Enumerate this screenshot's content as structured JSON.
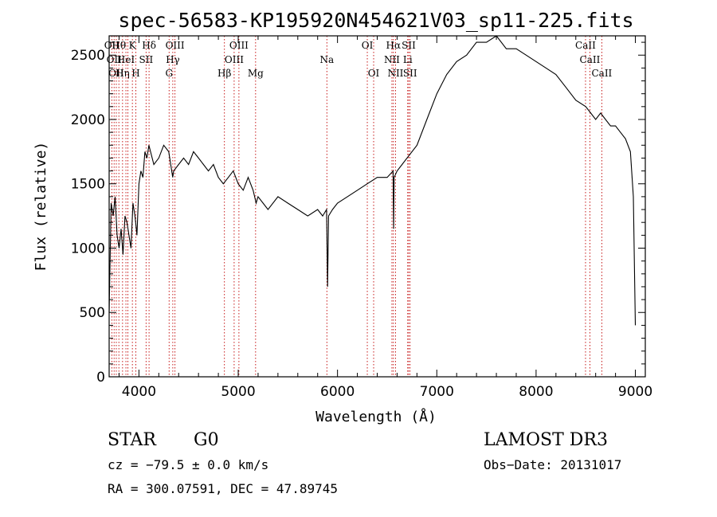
{
  "chart_data": {
    "type": "line",
    "title": "spec-56583-KP195920N454621V03_sp11-225.fits",
    "xlabel": "Wavelength (Å)",
    "ylabel": "Flux (relative)",
    "xlim": [
      3700,
      9100
    ],
    "ylim": [
      0,
      2650
    ],
    "xticks": [
      "4000",
      "5000",
      "6000",
      "7000",
      "8000",
      "9000"
    ],
    "yticks": [
      "0",
      "500",
      "1000",
      "1500",
      "2000",
      "2500"
    ],
    "grid": false,
    "x": [
      3700,
      3720,
      3740,
      3760,
      3780,
      3800,
      3820,
      3840,
      3860,
      3880,
      3900,
      3920,
      3940,
      3960,
      3980,
      4000,
      4020,
      4040,
      4060,
      4080,
      4100,
      4150,
      4200,
      4250,
      4300,
      4340,
      4350,
      4400,
      4450,
      4500,
      4550,
      4600,
      4650,
      4700,
      4750,
      4800,
      4850,
      4900,
      4950,
      5000,
      5050,
      5100,
      5150,
      5180,
      5200,
      5250,
      5300,
      5400,
      5500,
      5600,
      5700,
      5800,
      5850,
      5890,
      5900,
      5910,
      5950,
      6000,
      6100,
      6200,
      6300,
      6400,
      6500,
      6560,
      6565,
      6570,
      6600,
      6650,
      6700,
      6800,
      6900,
      7000,
      7100,
      7200,
      7300,
      7400,
      7500,
      7600,
      7700,
      7800,
      7900,
      8000,
      8100,
      8200,
      8300,
      8400,
      8500,
      8550,
      8600,
      8650,
      8700,
      8750,
      8800,
      8850,
      8900,
      8950,
      8980,
      9000
    ],
    "values": [
      500,
      1350,
      1250,
      1400,
      1100,
      1000,
      1150,
      950,
      1250,
      1200,
      1100,
      1000,
      1350,
      1250,
      1100,
      1500,
      1600,
      1550,
      1750,
      1700,
      1800,
      1650,
      1700,
      1800,
      1750,
      1550,
      1600,
      1650,
      1700,
      1650,
      1750,
      1700,
      1650,
      1600,
      1650,
      1550,
      1500,
      1550,
      1600,
      1500,
      1450,
      1550,
      1450,
      1350,
      1400,
      1350,
      1300,
      1400,
      1350,
      1300,
      1250,
      1300,
      1250,
      1300,
      700,
      1250,
      1300,
      1350,
      1400,
      1450,
      1500,
      1550,
      1550,
      1600,
      1150,
      1550,
      1600,
      1650,
      1700,
      1800,
      2000,
      2200,
      2350,
      2450,
      2500,
      2600,
      2600,
      2650,
      2550,
      2550,
      2500,
      2450,
      2400,
      2350,
      2250,
      2150,
      2100,
      2050,
      2000,
      2050,
      2000,
      1950,
      1950,
      1900,
      1850,
      1750,
      1400,
      400
    ],
    "lines": [
      {
        "w": 3727,
        "l1": "OII",
        "l2": "",
        "l3": ""
      },
      {
        "w": 3750,
        "l1": "",
        "l2": "OII",
        "l3": ""
      },
      {
        "w": 3772,
        "l1": "",
        "l2": "",
        "l3": "OII"
      },
      {
        "w": 3798,
        "l1": "Hθ",
        "l2": "",
        "l3": ""
      },
      {
        "w": 3835,
        "l1": "",
        "l2": "",
        "l3": "Hη"
      },
      {
        "w": 3869,
        "l1": "",
        "l2": "HeI",
        "l3": ""
      },
      {
        "w": 3889,
        "l1": "",
        "l2": "",
        "l3": ""
      },
      {
        "w": 3934,
        "l1": "K",
        "l2": "",
        "l3": ""
      },
      {
        "w": 3969,
        "l1": "",
        "l2": "",
        "l3": "H"
      },
      {
        "w": 4072,
        "l1": "",
        "l2": "SII",
        "l3": ""
      },
      {
        "w": 4102,
        "l1": "Hδ",
        "l2": "",
        "l3": ""
      },
      {
        "w": 4304,
        "l1": "",
        "l2": "",
        "l3": "G"
      },
      {
        "w": 4341,
        "l1": "",
        "l2": "Hγ",
        "l3": ""
      },
      {
        "w": 4363,
        "l1": "OIII",
        "l2": "",
        "l3": ""
      },
      {
        "w": 4861,
        "l1": "",
        "l2": "",
        "l3": "Hβ"
      },
      {
        "w": 4959,
        "l1": "",
        "l2": "OIII",
        "l3": ""
      },
      {
        "w": 5007,
        "l1": "OIII",
        "l2": "",
        "l3": ""
      },
      {
        "w": 5175,
        "l1": "",
        "l2": "",
        "l3": "Mg"
      },
      {
        "w": 5893,
        "l1": "",
        "l2": "Na",
        "l3": ""
      },
      {
        "w": 6300,
        "l1": "OI",
        "l2": "",
        "l3": ""
      },
      {
        "w": 6364,
        "l1": "",
        "l2": "",
        "l3": "OI"
      },
      {
        "w": 6548,
        "l1": "",
        "l2": "NII",
        "l3": ""
      },
      {
        "w": 6563,
        "l1": "Hα",
        "l2": "",
        "l3": ""
      },
      {
        "w": 6584,
        "l1": "",
        "l2": "",
        "l3": "NII"
      },
      {
        "w": 6707,
        "l1": "",
        "l2": "Li",
        "l3": ""
      },
      {
        "w": 6717,
        "l1": "SII",
        "l2": "",
        "l3": ""
      },
      {
        "w": 6731,
        "l1": "",
        "l2": "",
        "l3": "SII"
      },
      {
        "w": 8498,
        "l1": "CaII",
        "l2": "",
        "l3": ""
      },
      {
        "w": 8542,
        "l1": "",
        "l2": "CaII",
        "l3": ""
      },
      {
        "w": 8662,
        "l1": "",
        "l2": "",
        "l3": "CaII"
      }
    ]
  },
  "info": {
    "class": "STAR",
    "subclass": "G0",
    "survey": "LAMOST DR3",
    "cz": "cz = −79.5 ± 0.0 km/s",
    "obsdate": "Obs−Date: 20131017",
    "coords": "RA = 300.07591, DEC =  47.89745"
  }
}
